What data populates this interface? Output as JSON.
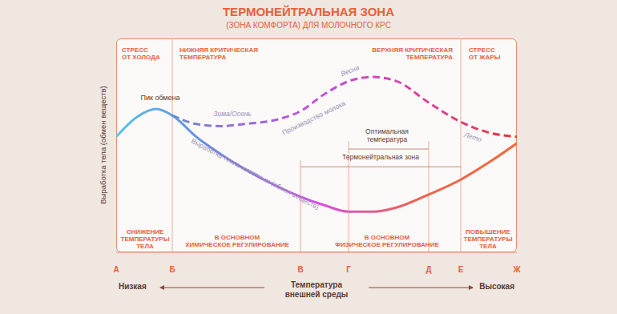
{
  "chart_data": {
    "type": "line",
    "title": "ТЕРМОНЕЙТРАЛЬНАЯ ЗОНА",
    "subtitle": "(ЗОНА КОМФОРТА) ДЛЯ МОЛОЧНОГО КРС",
    "y_label": "Выработка тела (обмен веществ)",
    "x_label": [
      "Температура",
      "внешней среды"
    ],
    "x_low": "Низкая",
    "x_high": "Высокая",
    "tick_labels": "x",
    "xlim": [
      0,
      100
    ],
    "ylim": [
      0,
      100
    ],
    "xticks": [
      {
        "value": 0,
        "label": "А"
      },
      {
        "value": 14,
        "label": "Б"
      },
      {
        "value": 46,
        "label": "В"
      },
      {
        "value": 58,
        "label": "Г"
      },
      {
        "value": 78,
        "label": "Д"
      },
      {
        "value": 86,
        "label": "Е"
      },
      {
        "value": 100,
        "label": "Ж"
      }
    ],
    "x": [
      0,
      5,
      10,
      14,
      20,
      26,
      32,
      40,
      46,
      52,
      58,
      64,
      70,
      78,
      86,
      93,
      100
    ],
    "series": [
      {
        "name": "Выработка тепла животным (обмен веществ)",
        "line_style": "solid",
        "colors": [
          "#56c4ea",
          "#6a86e6",
          "#d94fe6",
          "#f0604a",
          "#f26a3c"
        ],
        "values": [
          54,
          63,
          67,
          64,
          54,
          46,
          39,
          31,
          26,
          22,
          19,
          19,
          21,
          27,
          34,
          42,
          51
        ]
      },
      {
        "name": "Производство молока",
        "line_style": "dashed",
        "colors": [
          "#3aa8c8",
          "#8a78d8",
          "#c050e0",
          "#e040a8",
          "#e03a30"
        ],
        "values": [
          null,
          null,
          null,
          64,
          60,
          59,
          60,
          62,
          66,
          74,
          80,
          82,
          80,
          70,
          61,
          56,
          54
        ]
      }
    ],
    "zones_top": [
      [
        "СТРЕСС",
        "ОТ ХОЛОДА"
      ],
      [
        "НИЖНЯЯ КРИТИЧЕСКАЯ",
        "ТЕМПЕРАТУРА"
      ],
      [
        "ВЕРХНЯЯ КРИТИЧЕСКАЯ",
        "ТЕМПЕРАТУРА"
      ],
      [
        "СТРЕСС",
        "ОТ ЖАРЫ"
      ]
    ],
    "zones_bottom": [
      [
        "СНИЖЕНИЕ",
        "ТЕМПЕРАТУРЫ",
        "ТЕЛА"
      ],
      [
        "В ОСНОВНОМ",
        "ХИМИЧЕСКОЕ РЕГУЛИРОВАНИЕ"
      ],
      [
        "В ОСНОВНОМ",
        "ФИЗИЧЕСКОЕ РЕГУЛИРОВАНИЕ"
      ],
      [
        "ПОВЫШЕНИЕ",
        "ТЕМПЕРАТУРЫ",
        "ТЕЛА"
      ]
    ],
    "annotations": {
      "peak": "Пик обмена",
      "winter": "Зима/Осень",
      "spring": "Весна",
      "summer": "Лето"
    },
    "ranges": [
      {
        "label": [
          "Оптимальная",
          "температура"
        ],
        "from": 58,
        "to": 78
      },
      {
        "label": [
          "Термонейтральная зона"
        ],
        "from": 46,
        "to": 86
      }
    ]
  }
}
